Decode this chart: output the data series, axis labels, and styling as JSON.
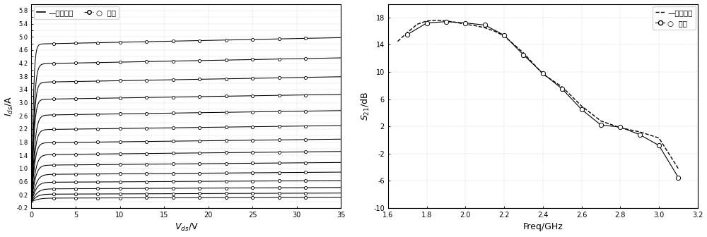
{
  "plot1": {
    "xlabel": "Vds/V",
    "ylabel": "Ids/A",
    "xlim": [
      0,
      35
    ],
    "ylim": [
      -0.2,
      6.0
    ],
    "xticks": [
      0,
      5,
      10,
      15,
      20,
      25,
      30,
      35
    ],
    "ytick_vals": [
      -0.2,
      0,
      0.2,
      0.4,
      0.6,
      0.8,
      1.0,
      1.2,
      1.4,
      1.6,
      1.8,
      2.0,
      2.2,
      2.4,
      2.6,
      2.8,
      3.0,
      3.2,
      3.4,
      3.6,
      3.8,
      4.0,
      4.2,
      4.4,
      4.6,
      4.8,
      5.0,
      5.2,
      5.4,
      5.6,
      5.8,
      6.0
    ],
    "ytick_labels": [
      "-0.2",
      "",
      "0.2",
      "",
      "0.6",
      "",
      "1.0",
      "",
      "1.4",
      "",
      "1.8",
      "",
      "2.2",
      "",
      "2.6",
      "",
      "3.0",
      "",
      "3.4",
      "",
      "3.8",
      "",
      "4.2",
      "",
      "4.6",
      "",
      "5.0",
      "",
      "5.4",
      "",
      "5.8",
      ""
    ],
    "vgs_levels": [
      {
        "sat": 0.1,
        "knee": 1.0,
        "slope": 0.0008
      },
      {
        "sat": 0.22,
        "knee": 0.8,
        "slope": 0.001
      },
      {
        "sat": 0.38,
        "knee": 0.8,
        "slope": 0.0013
      },
      {
        "sat": 0.58,
        "knee": 0.7,
        "slope": 0.0016
      },
      {
        "sat": 0.82,
        "knee": 0.7,
        "slope": 0.002
      },
      {
        "sat": 1.1,
        "knee": 0.6,
        "slope": 0.0024
      },
      {
        "sat": 1.42,
        "knee": 0.6,
        "slope": 0.0028
      },
      {
        "sat": 1.78,
        "knee": 0.5,
        "slope": 0.0032
      },
      {
        "sat": 2.18,
        "knee": 0.5,
        "slope": 0.0036
      },
      {
        "sat": 2.62,
        "knee": 0.5,
        "slope": 0.004
      },
      {
        "sat": 3.1,
        "knee": 0.4,
        "slope": 0.0044
      },
      {
        "sat": 3.62,
        "knee": 0.4,
        "slope": 0.0048
      },
      {
        "sat": 4.18,
        "knee": 0.4,
        "slope": 0.0052
      },
      {
        "sat": 4.78,
        "knee": 0.3,
        "slope": 0.0056
      }
    ],
    "marker_x": [
      2.5,
      5,
      7.5,
      10,
      13,
      16,
      19,
      22,
      25,
      28,
      31
    ],
    "legend1": "原始电路",
    "legend2": "模型"
  },
  "plot2": {
    "xlabel": "Freq/GHz",
    "ylabel": "S21/dB",
    "xlim": [
      1.6,
      3.2
    ],
    "ylim": [
      -10,
      20
    ],
    "xticks": [
      1.6,
      1.8,
      2.0,
      2.2,
      2.4,
      2.6,
      2.8,
      3.0,
      3.2
    ],
    "yticks": [
      -10,
      -6,
      -2,
      2,
      6,
      10,
      14,
      18
    ],
    "ytick_labels": [
      "-10",
      "-6",
      "-2",
      "2",
      "6",
      "10",
      "14",
      "18"
    ],
    "freq_orig": [
      1.65,
      1.7,
      1.75,
      1.8,
      1.85,
      1.9,
      1.95,
      2.0,
      2.05,
      2.1,
      2.15,
      2.2,
      2.3,
      2.4,
      2.5,
      2.6,
      2.7,
      2.8,
      2.9,
      3.0,
      3.1
    ],
    "s21_orig": [
      14.5,
      15.8,
      17.0,
      17.5,
      17.6,
      17.5,
      17.3,
      17.0,
      16.8,
      16.5,
      16.0,
      15.3,
      12.8,
      9.7,
      7.8,
      5.0,
      2.8,
      1.8,
      1.2,
      0.3,
      -4.2
    ],
    "freq_model": [
      1.7,
      1.8,
      1.9,
      2.0,
      2.1,
      2.2,
      2.3,
      2.4,
      2.5,
      2.6,
      2.7,
      2.8,
      2.9,
      3.0,
      3.1
    ],
    "s21_model": [
      15.5,
      17.2,
      17.4,
      17.2,
      16.9,
      15.4,
      12.5,
      9.8,
      7.5,
      4.5,
      2.2,
      1.9,
      0.8,
      -0.8,
      -5.5
    ],
    "legend1": "原始电路",
    "legend2": "模型"
  }
}
